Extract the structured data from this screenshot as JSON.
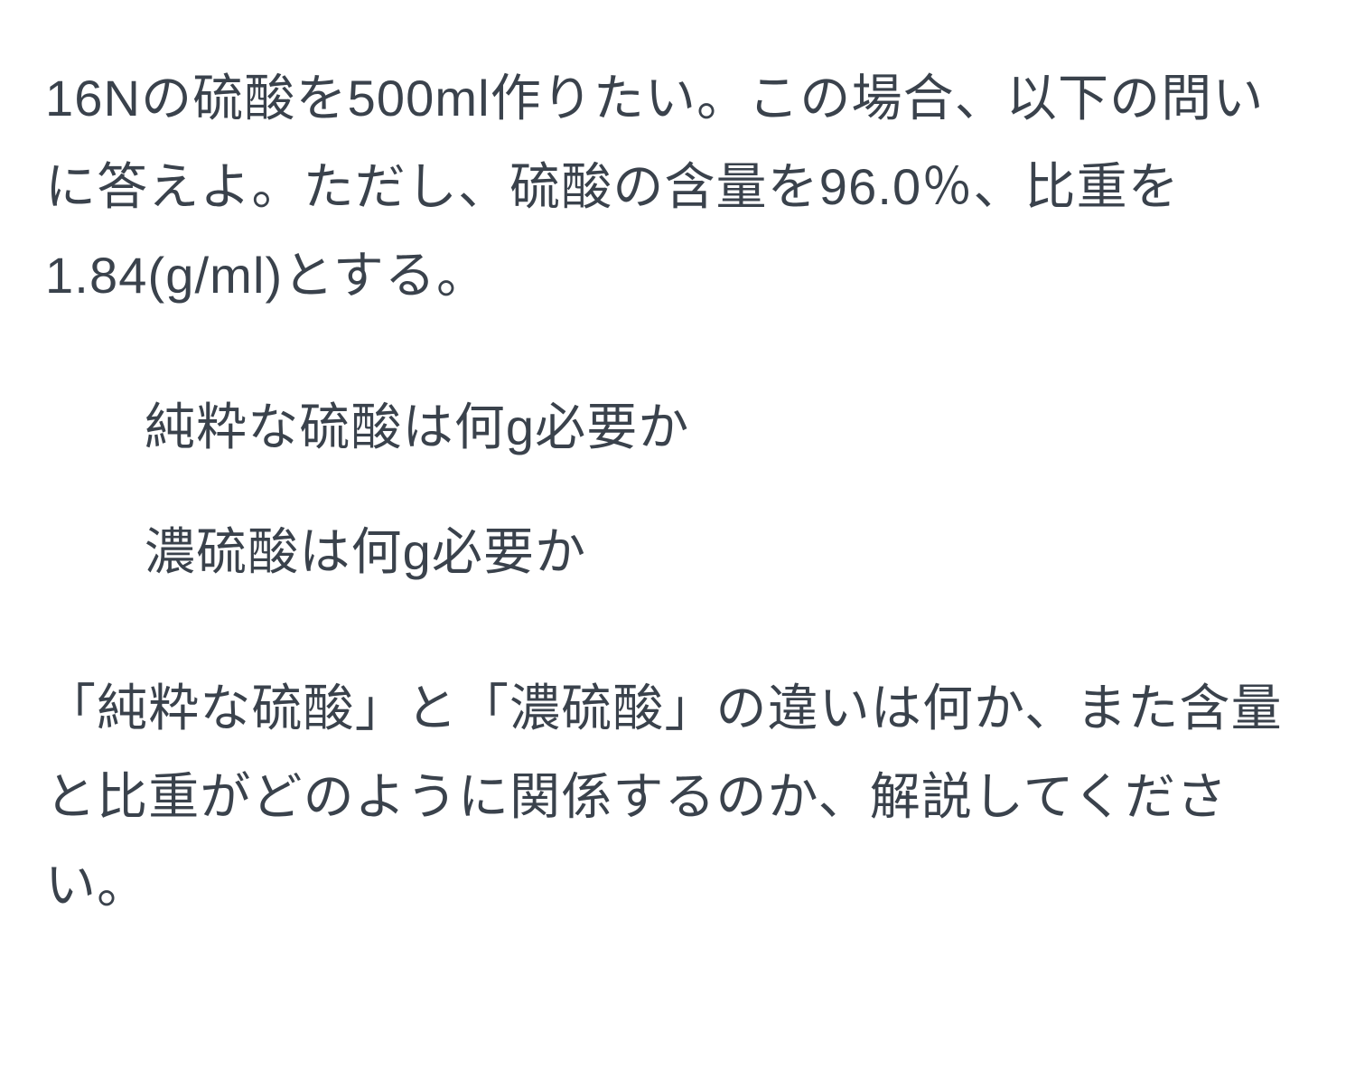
{
  "document": {
    "text_color": "#3a424c",
    "background_color": "#ffffff",
    "font_size_pt": 42,
    "line_height": 1.75,
    "main_problem": "16Nの硫酸を500ml作りたい。この場合、以下の問いに答えよ。ただし、硫酸の含量を96.0％、比重を1.84(g/ml)とする。",
    "sub_questions": [
      "純粋な硫酸は何g必要か",
      "濃硫酸は何g必要か"
    ],
    "explanation_request": "「純粋な硫酸」と「濃硫酸」の違いは何か、また含量と比重がどのように関係するのか、解説してください。"
  }
}
